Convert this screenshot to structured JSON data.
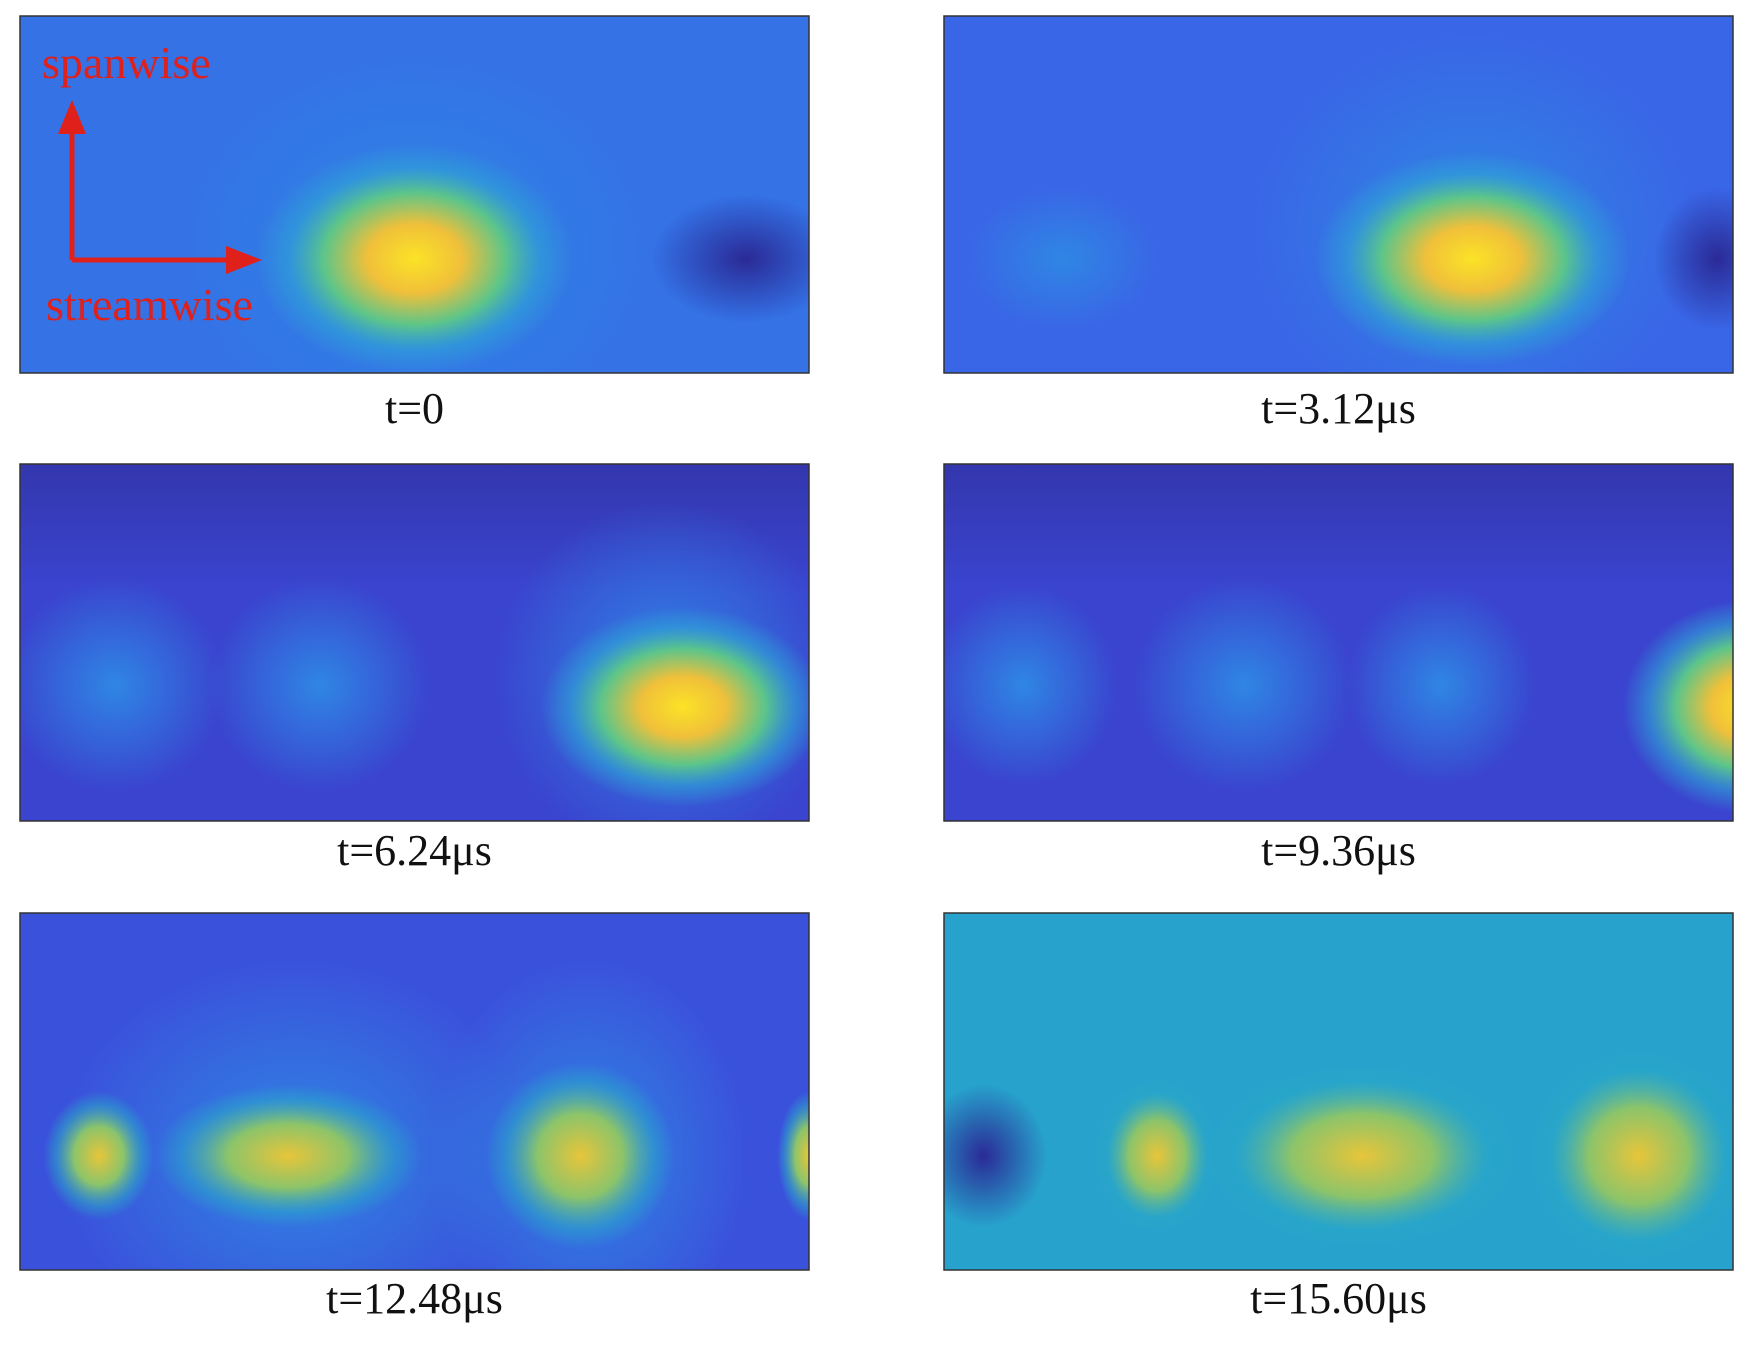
{
  "annotations": {
    "spanwise": "spanwise",
    "streamwise": "streamwise"
  },
  "panels": [
    {
      "label": "t=0"
    },
    {
      "label": "t=3.12μs"
    },
    {
      "label": "t=6.24μs"
    },
    {
      "label": "t=9.36μs"
    },
    {
      "label": "t=12.48μs"
    },
    {
      "label": "t=15.60μs"
    }
  ]
}
